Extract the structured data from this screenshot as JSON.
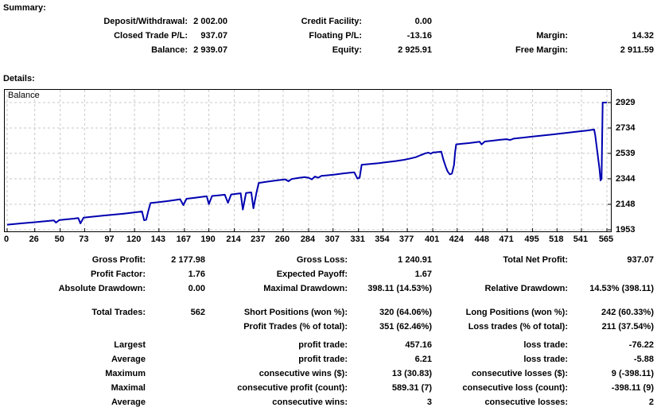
{
  "summary": {
    "heading": "Summary:",
    "rows": [
      {
        "l1": "Deposit/Withdrawal:",
        "v1": "2 002.00",
        "l2": "Credit Facility:",
        "v2": "0.00",
        "l3": "",
        "v3": ""
      },
      {
        "l1": "Closed Trade P/L:",
        "v1": "937.07",
        "l2": "Floating P/L:",
        "v2": "-13.16",
        "l3": "Margin:",
        "v3": "14.32"
      },
      {
        "l1": "Balance:",
        "v1": "2 939.07",
        "l2": "Equity:",
        "v2": "2 925.91",
        "l3": "Free Margin:",
        "v3": "2 911.59"
      }
    ]
  },
  "details": {
    "heading": "Details:"
  },
  "chart_data": {
    "type": "line",
    "series_label": "Balance",
    "line_color": "#0000B0",
    "grid": true,
    "legend_position": "top-left",
    "xlim": [
      0,
      565
    ],
    "ylim": [
      1953,
      2929
    ],
    "x_ticks": [
      0,
      26,
      50,
      73,
      97,
      120,
      143,
      167,
      190,
      214,
      237,
      260,
      284,
      307,
      331,
      354,
      377,
      401,
      424,
      448,
      471,
      495,
      518,
      541,
      565
    ],
    "y_ticks": [
      1953,
      2148,
      2344,
      2539,
      2734,
      2929
    ],
    "points": [
      [
        0,
        1992
      ],
      [
        8,
        1998
      ],
      [
        16,
        2004
      ],
      [
        24,
        2010
      ],
      [
        32,
        2016
      ],
      [
        40,
        2022
      ],
      [
        44,
        2025
      ],
      [
        46,
        2008
      ],
      [
        49,
        2027
      ],
      [
        56,
        2033
      ],
      [
        62,
        2038
      ],
      [
        67,
        2043
      ],
      [
        69,
        2002
      ],
      [
        72,
        2046
      ],
      [
        80,
        2053
      ],
      [
        90,
        2061
      ],
      [
        100,
        2069
      ],
      [
        110,
        2077
      ],
      [
        118,
        2084
      ],
      [
        124,
        2090
      ],
      [
        127,
        2094
      ],
      [
        129,
        2026
      ],
      [
        131,
        2030
      ],
      [
        133,
        2098
      ],
      [
        135,
        2158
      ],
      [
        142,
        2164
      ],
      [
        150,
        2172
      ],
      [
        158,
        2181
      ],
      [
        163,
        2187
      ],
      [
        166,
        2142
      ],
      [
        169,
        2191
      ],
      [
        177,
        2199
      ],
      [
        184,
        2206
      ],
      [
        188,
        2210
      ],
      [
        190,
        2150
      ],
      [
        193,
        2212
      ],
      [
        200,
        2218
      ],
      [
        205,
        2222
      ],
      [
        208,
        2160
      ],
      [
        211,
        2224
      ],
      [
        217,
        2230
      ],
      [
        220,
        2233
      ],
      [
        222,
        2108
      ],
      [
        225,
        2235
      ],
      [
        228,
        2238
      ],
      [
        230,
        2240
      ],
      [
        232,
        2118
      ],
      [
        235,
        2242
      ],
      [
        237,
        2312
      ],
      [
        245,
        2322
      ],
      [
        252,
        2330
      ],
      [
        258,
        2336
      ],
      [
        262,
        2340
      ],
      [
        265,
        2325
      ],
      [
        268,
        2342
      ],
      [
        274,
        2350
      ],
      [
        280,
        2357
      ],
      [
        284,
        2352
      ],
      [
        287,
        2340
      ],
      [
        290,
        2362
      ],
      [
        293,
        2352
      ],
      [
        296,
        2366
      ],
      [
        302,
        2371
      ],
      [
        309,
        2377
      ],
      [
        316,
        2384
      ],
      [
        322,
        2390
      ],
      [
        327,
        2394
      ],
      [
        330,
        2345
      ],
      [
        332,
        2352
      ],
      [
        334,
        2452
      ],
      [
        342,
        2458
      ],
      [
        350,
        2464
      ],
      [
        358,
        2472
      ],
      [
        366,
        2480
      ],
      [
        374,
        2490
      ],
      [
        380,
        2500
      ],
      [
        385,
        2510
      ],
      [
        388,
        2520
      ],
      [
        391,
        2530
      ],
      [
        394,
        2540
      ],
      [
        397,
        2545
      ],
      [
        399,
        2536
      ],
      [
        401,
        2546
      ],
      [
        404,
        2548
      ],
      [
        407,
        2550
      ],
      [
        409,
        2552
      ],
      [
        411,
        2490
      ],
      [
        413,
        2440
      ],
      [
        415,
        2400
      ],
      [
        417,
        2378
      ],
      [
        419,
        2384
      ],
      [
        421,
        2450
      ],
      [
        422,
        2550
      ],
      [
        423,
        2608
      ],
      [
        429,
        2613
      ],
      [
        435,
        2618
      ],
      [
        441,
        2624
      ],
      [
        445,
        2628
      ],
      [
        447,
        2608
      ],
      [
        450,
        2630
      ],
      [
        457,
        2636
      ],
      [
        464,
        2643
      ],
      [
        470,
        2648
      ],
      [
        474,
        2642
      ],
      [
        477,
        2652
      ],
      [
        486,
        2660
      ],
      [
        495,
        2668
      ],
      [
        504,
        2676
      ],
      [
        513,
        2684
      ],
      [
        522,
        2692
      ],
      [
        531,
        2700
      ],
      [
        539,
        2708
      ],
      [
        546,
        2714
      ],
      [
        551,
        2720
      ],
      [
        553,
        2722
      ],
      [
        554,
        2680
      ],
      [
        556,
        2550
      ],
      [
        558,
        2420
      ],
      [
        559,
        2332
      ],
      [
        560,
        2345
      ],
      [
        561,
        2929
      ],
      [
        565,
        2929
      ]
    ]
  },
  "stats": {
    "performance": [
      {
        "l1": "Gross Profit:",
        "v1": "2 177.98",
        "l2": "Gross Loss:",
        "v2": "1 240.91",
        "l3": "Total Net Profit:",
        "v3": "937.07"
      },
      {
        "l1": "Profit Factor:",
        "v1": "1.76",
        "l2": "Expected Payoff:",
        "v2": "1.67",
        "l3": "",
        "v3": ""
      },
      {
        "l1": "Absolute Drawdown:",
        "v1": "0.00",
        "l2": "Maximal Drawdown:",
        "v2": "398.11 (14.53%)",
        "l3": "Relative Drawdown:",
        "v3": "14.53% (398.11)"
      }
    ],
    "trades": [
      {
        "l1": "Total Trades:",
        "v1": "562",
        "l2": "Short Positions (won %):",
        "v2": "320 (64.06%)",
        "l3": "Long Positions (won %):",
        "v3": "242 (60.33%)"
      },
      {
        "l1": "",
        "v1": "",
        "l2": "Profit Trades (% of total):",
        "v2": "351 (62.46%)",
        "l3": "Loss trades (% of total):",
        "v3": "211 (37.54%)"
      },
      {
        "l1": "Largest",
        "v1": "",
        "l2": "profit trade:",
        "v2": "457.16",
        "l3": "loss trade:",
        "v3": "-76.22"
      },
      {
        "l1": "Average",
        "v1": "",
        "l2": "profit trade:",
        "v2": "6.21",
        "l3": "loss trade:",
        "v3": "-5.88"
      },
      {
        "l1": "Maximum",
        "v1": "",
        "l2": "consecutive wins ($):",
        "v2": "13 (30.83)",
        "l3": "consecutive losses ($):",
        "v3": "9 (-398.11)"
      },
      {
        "l1": "Maximal",
        "v1": "",
        "l2": "consecutive profit (count):",
        "v2": "589.31 (7)",
        "l3": "consecutive loss (count):",
        "v3": "-398.11 (9)"
      },
      {
        "l1": "Average",
        "v1": "",
        "l2": "consecutive wins:",
        "v2": "3",
        "l3": "consecutive losses:",
        "v3": "2"
      }
    ]
  }
}
